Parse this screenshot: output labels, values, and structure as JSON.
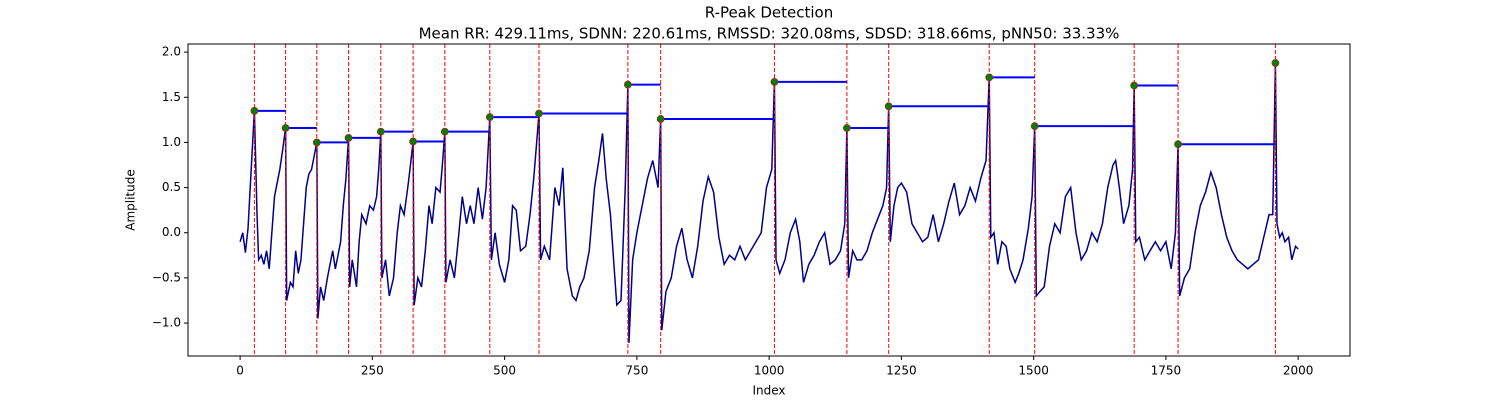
{
  "chart_data": {
    "type": "line",
    "title": "R-Peak Detection",
    "subtitle": "Mean RR: 429.11ms, SDNN: 220.61ms, RMSSD: 320.08ms, SDSD: 318.66ms, pNN50: 33.33%",
    "x_label": "Index",
    "y_label": "Amplitude",
    "xlim": [
      -98.5,
      2098
    ],
    "ylim": [
      -1.365,
      2.09
    ],
    "xticks": [
      0,
      250,
      500,
      750,
      1000,
      1250,
      1500,
      1750,
      2000
    ],
    "yticks": [
      {
        "value": -1,
        "label": "−1.0"
      },
      {
        "value": -0.5,
        "label": "−0.5"
      },
      {
        "value": 0,
        "label": "0.0"
      },
      0.5,
      {
        "value": 1,
        "label": "1.0"
      },
      1.5,
      {
        "value": 2,
        "label": "2.0"
      }
    ],
    "signal": {
      "color": "#00008b",
      "x": [
        0,
        5,
        10,
        15,
        20,
        27,
        32,
        35,
        40,
        45,
        50,
        55,
        60,
        65,
        70,
        75,
        80,
        86,
        88,
        95,
        100,
        105,
        110,
        115,
        120,
        125,
        130,
        135,
        140,
        145,
        147,
        152,
        158,
        165,
        175,
        180,
        190,
        195,
        200,
        205,
        207,
        212,
        220,
        225,
        230,
        238,
        245,
        252,
        258,
        262,
        266,
        268,
        275,
        282,
        290,
        297,
        303,
        310,
        318,
        323,
        327,
        329,
        336,
        343,
        350,
        357,
        363,
        370,
        378,
        383,
        387,
        389,
        397,
        405,
        412,
        420,
        428,
        435,
        442,
        450,
        458,
        465,
        472,
        475,
        482,
        490,
        500,
        508,
        515,
        522,
        530,
        540,
        548,
        555,
        565,
        568,
        575,
        585,
        595,
        603,
        610,
        618,
        628,
        635,
        642,
        650,
        660,
        670,
        678,
        685,
        692,
        700,
        712,
        720,
        728,
        733,
        735,
        742,
        750,
        760,
        770,
        780,
        790,
        795,
        797,
        805,
        815,
        825,
        835,
        845,
        855,
        865,
        875,
        885,
        895,
        905,
        915,
        925,
        935,
        945,
        955,
        965,
        975,
        985,
        995,
        1005,
        1010,
        1013,
        1020,
        1030,
        1040,
        1050,
        1058,
        1065,
        1075,
        1085,
        1095,
        1105,
        1115,
        1125,
        1135,
        1143,
        1147,
        1150,
        1158,
        1166,
        1175,
        1185,
        1195,
        1205,
        1215,
        1222,
        1226,
        1229,
        1236,
        1243,
        1250,
        1260,
        1270,
        1280,
        1290,
        1300,
        1310,
        1320,
        1330,
        1340,
        1350,
        1360,
        1370,
        1380,
        1390,
        1400,
        1410,
        1416,
        1419,
        1425,
        1432,
        1440,
        1448,
        1455,
        1465,
        1472,
        1480,
        1490,
        1497,
        1502,
        1505,
        1512,
        1520,
        1530,
        1540,
        1550,
        1560,
        1570,
        1580,
        1590,
        1600,
        1610,
        1620,
        1630,
        1640,
        1650,
        1655,
        1662,
        1670,
        1680,
        1687,
        1690,
        1693,
        1700,
        1710,
        1720,
        1730,
        1740,
        1750,
        1760,
        1768,
        1773,
        1776,
        1785,
        1795,
        1805,
        1815,
        1825,
        1835,
        1845,
        1855,
        1865,
        1875,
        1885,
        1895,
        1905,
        1915,
        1925,
        1935,
        1945,
        1952,
        1957,
        1960,
        1965,
        1970,
        1975,
        1982,
        1988,
        1995,
        2000
      ],
      "values": [
        -0.1,
        0.0,
        -0.22,
        0.05,
        0.6,
        1.35,
        0.2,
        -0.3,
        -0.25,
        -0.35,
        -0.2,
        -0.4,
        0.0,
        0.4,
        0.55,
        0.7,
        0.9,
        1.16,
        -0.75,
        -0.55,
        -0.6,
        -0.2,
        -0.45,
        -0.3,
        0.1,
        0.5,
        0.65,
        0.7,
        0.85,
        1.0,
        -0.95,
        -0.6,
        -0.75,
        -0.5,
        -0.2,
        -0.4,
        -0.1,
        0.3,
        0.6,
        1.05,
        -0.6,
        -0.3,
        -0.6,
        -0.1,
        0.2,
        0.1,
        0.3,
        0.25,
        0.4,
        0.7,
        1.12,
        -0.5,
        -0.3,
        -0.7,
        -0.5,
        0.0,
        0.3,
        0.2,
        0.55,
        0.8,
        1.01,
        -0.8,
        -0.5,
        -0.6,
        -0.2,
        0.3,
        0.1,
        0.5,
        0.45,
        0.8,
        1.12,
        -0.55,
        -0.3,
        -0.5,
        -0.1,
        0.4,
        0.1,
        0.3,
        0.1,
        0.5,
        0.15,
        0.5,
        1.28,
        -0.3,
        0.0,
        -0.35,
        -0.55,
        -0.3,
        0.3,
        0.25,
        -0.2,
        -0.15,
        0.2,
        0.6,
        1.32,
        -0.3,
        -0.15,
        -0.3,
        0.5,
        0.3,
        0.72,
        -0.4,
        -0.7,
        -0.75,
        -0.6,
        -0.5,
        -0.2,
        0.5,
        0.8,
        1.1,
        0.6,
        0.2,
        -0.8,
        -0.75,
        0.5,
        1.64,
        -1.22,
        -0.3,
        0.0,
        0.3,
        0.6,
        0.8,
        0.5,
        1.26,
        -1.08,
        -0.65,
        -0.5,
        -0.15,
        0.05,
        -0.3,
        -0.5,
        -0.15,
        0.35,
        0.62,
        0.45,
        -0.05,
        -0.35,
        -0.25,
        -0.3,
        -0.15,
        -0.3,
        -0.2,
        -0.1,
        0.0,
        0.5,
        0.7,
        1.67,
        -0.3,
        -0.45,
        -0.3,
        0.0,
        0.15,
        -0.1,
        -0.55,
        -0.35,
        -0.25,
        -0.1,
        0.0,
        -0.35,
        -0.3,
        -0.2,
        0.1,
        1.16,
        -0.5,
        -0.2,
        -0.3,
        -0.3,
        -0.2,
        0.0,
        0.15,
        0.3,
        0.5,
        1.4,
        -0.1,
        0.3,
        0.5,
        0.55,
        0.45,
        0.1,
        0.0,
        -0.1,
        -0.05,
        0.2,
        -0.1,
        0.1,
        0.35,
        0.55,
        0.2,
        0.3,
        0.5,
        0.35,
        0.6,
        0.8,
        1.72,
        -0.05,
        0.0,
        -0.35,
        -0.1,
        -0.15,
        -0.4,
        -0.55,
        -0.45,
        -0.3,
        0.05,
        0.4,
        1.18,
        -0.7,
        -0.65,
        -0.6,
        -0.15,
        0.1,
        0.0,
        0.4,
        0.5,
        0.0,
        -0.3,
        -0.2,
        0.0,
        -0.1,
        0.1,
        0.5,
        0.75,
        0.8,
        0.5,
        0.1,
        0.3,
        0.7,
        1.63,
        -0.1,
        -0.05,
        -0.3,
        -0.2,
        -0.1,
        -0.2,
        -0.1,
        -0.4,
        0.0,
        0.98,
        -0.7,
        -0.5,
        -0.4,
        0.0,
        0.3,
        0.45,
        0.67,
        0.5,
        0.2,
        -0.05,
        -0.2,
        -0.3,
        -0.35,
        -0.4,
        -0.35,
        -0.3,
        -0.05,
        0.2,
        0.2,
        1.88,
        0.1,
        -0.05,
        0.0,
        -0.1,
        -0.05,
        -0.3,
        -0.15,
        -0.18
      ]
    },
    "peaks": {
      "color": "green",
      "edge_color": "#b22222",
      "line_color": "red",
      "segment_color": "blue",
      "x": [
        27,
        86,
        145,
        205,
        266,
        327,
        387,
        472,
        565,
        733,
        795,
        1010,
        1147,
        1226,
        1416,
        1502,
        1690,
        1773,
        1957
      ],
      "values": [
        1.35,
        1.16,
        1.0,
        1.05,
        1.12,
        1.01,
        1.12,
        1.28,
        1.32,
        1.64,
        1.26,
        1.67,
        1.16,
        1.4,
        1.72,
        1.18,
        1.63,
        0.98,
        1.88
      ]
    }
  }
}
